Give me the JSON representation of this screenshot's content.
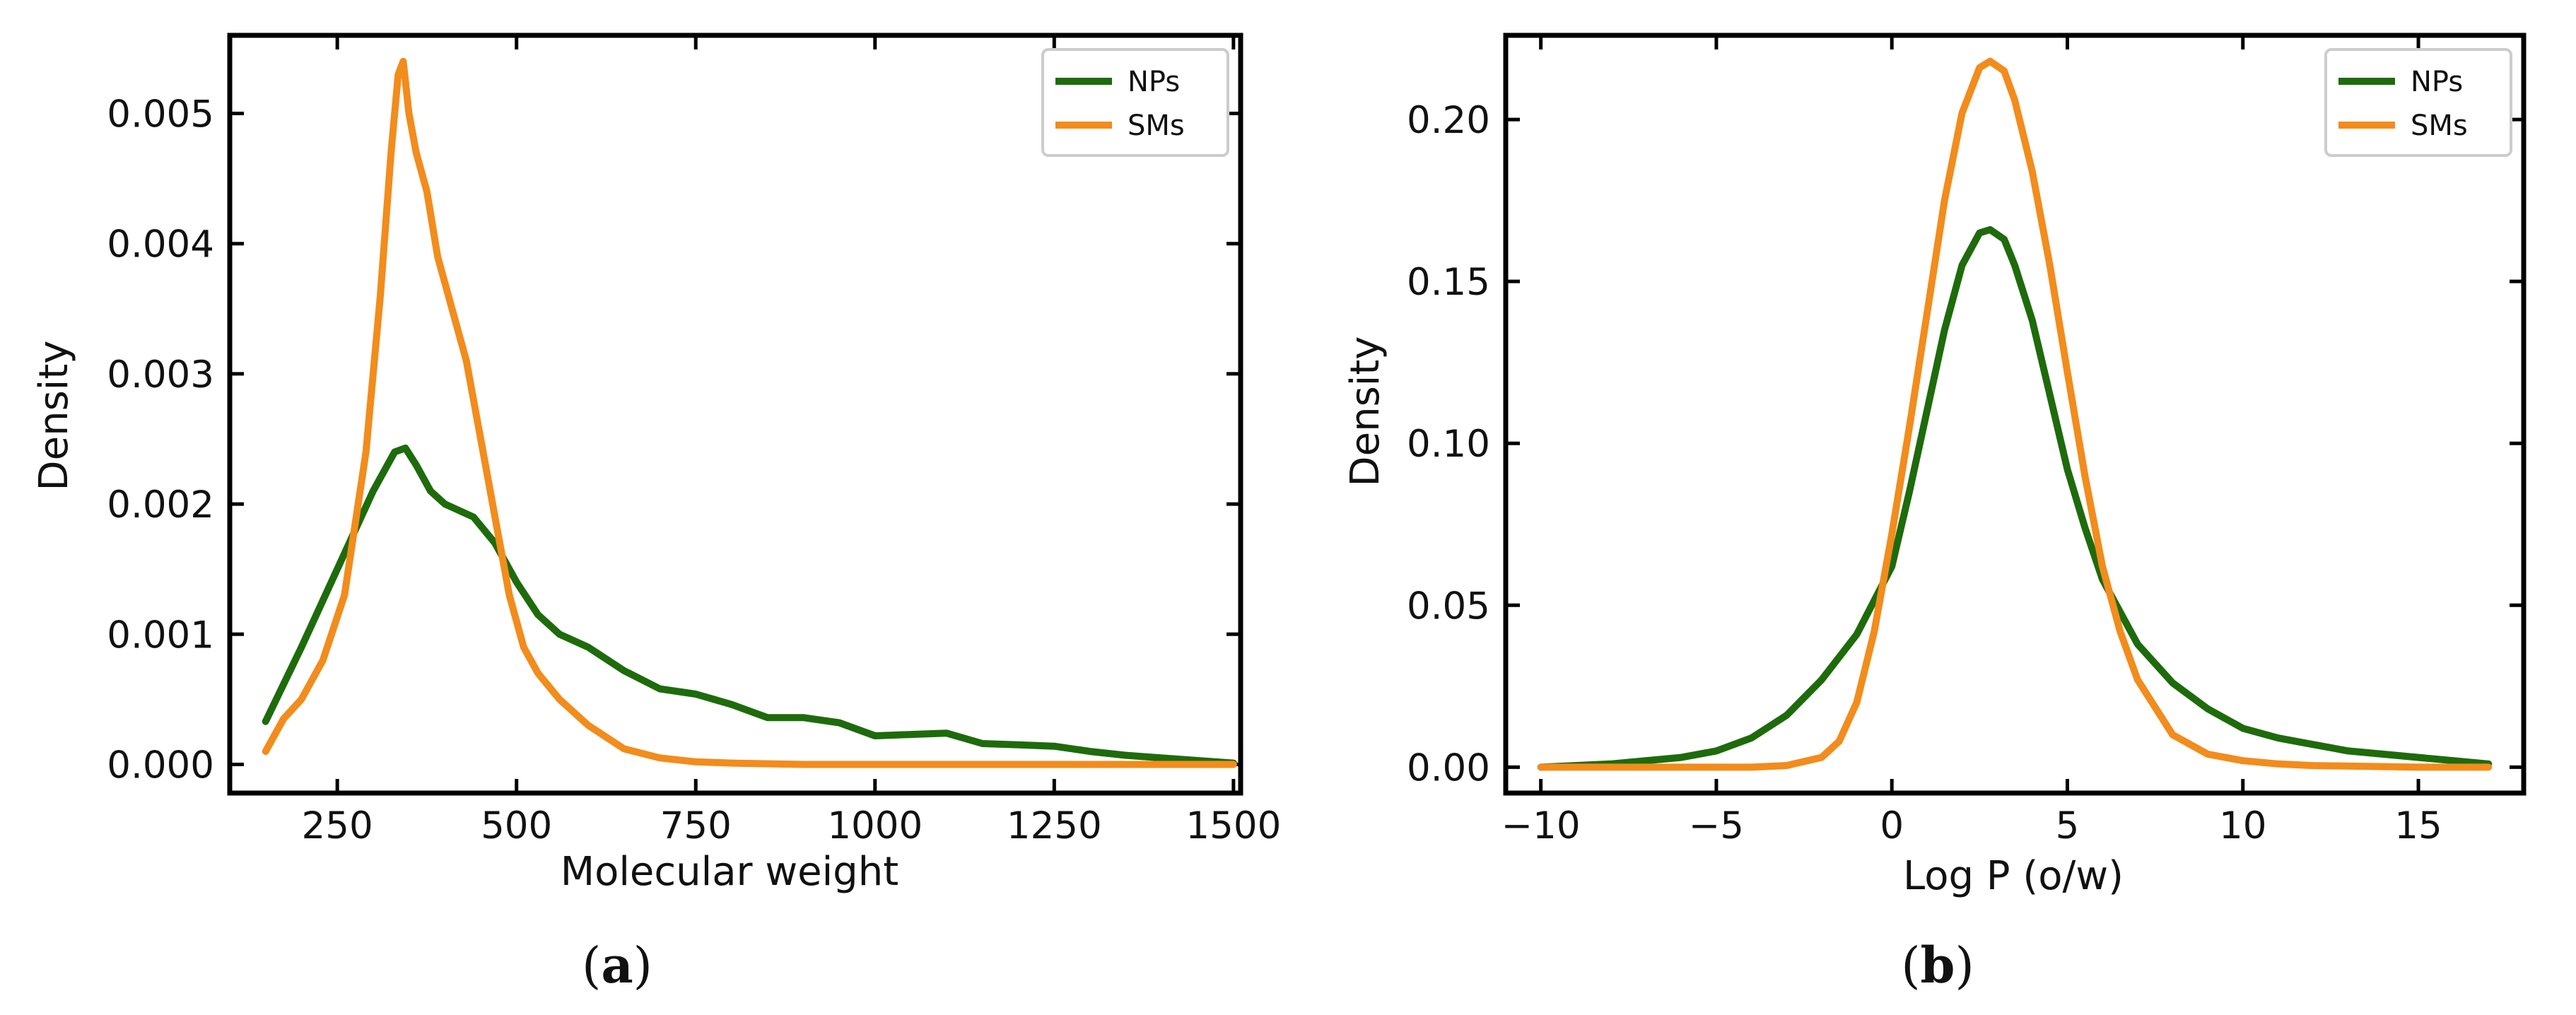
{
  "chart_data": [
    {
      "type": "line",
      "panel_label": "a",
      "xlabel": "Molecular weight",
      "ylabel": "Density",
      "xlim": [
        100,
        1510
      ],
      "ylim": [
        -0.00022,
        0.0056
      ],
      "xticks": [
        250,
        500,
        750,
        1000,
        1250,
        1500
      ],
      "yticks": [
        0.0,
        0.001,
        0.002,
        0.003,
        0.004,
        0.005
      ],
      "xtick_labels": [
        "250",
        "500",
        "750",
        "1000",
        "1250",
        "1500"
      ],
      "ytick_labels": [
        "0.000",
        "0.001",
        "0.002",
        "0.003",
        "0.004",
        "0.005"
      ],
      "legend_position": "top-right",
      "series": [
        {
          "name": "NPs",
          "color": "#1e6b0c",
          "x": [
            150,
            200,
            250,
            300,
            330,
            345,
            360,
            380,
            400,
            440,
            470,
            500,
            530,
            560,
            600,
            650,
            700,
            750,
            800,
            850,
            900,
            950,
            1000,
            1050,
            1100,
            1150,
            1200,
            1250,
            1300,
            1350,
            1400,
            1450,
            1500
          ],
          "y": [
            0.00033,
            0.0009,
            0.0015,
            0.0021,
            0.0024,
            0.00243,
            0.0023,
            0.0021,
            0.002,
            0.0019,
            0.0017,
            0.0014,
            0.00115,
            0.001,
            0.0009,
            0.00072,
            0.00058,
            0.00054,
            0.00046,
            0.00036,
            0.00036,
            0.00032,
            0.00022,
            0.00023,
            0.00024,
            0.00016,
            0.00015,
            0.00014,
            0.0001,
            7e-05,
            5e-05,
            3e-05,
            1e-05
          ]
        },
        {
          "name": "SMs",
          "color": "#f28c1c",
          "x": [
            150,
            175,
            200,
            230,
            260,
            290,
            310,
            325,
            335,
            342,
            350,
            360,
            375,
            390,
            410,
            430,
            450,
            470,
            490,
            510,
            530,
            560,
            600,
            650,
            700,
            750,
            800,
            900,
            1000,
            1200,
            1500
          ],
          "y": [
            0.0001,
            0.00035,
            0.0005,
            0.0008,
            0.0013,
            0.0024,
            0.0036,
            0.0047,
            0.0053,
            0.0054,
            0.005,
            0.0047,
            0.0044,
            0.0039,
            0.0035,
            0.0031,
            0.0025,
            0.0019,
            0.0013,
            0.0009,
            0.0007,
            0.0005,
            0.0003,
            0.00012,
            5e-05,
            2e-05,
            1e-05,
            0.0,
            0.0,
            0.0,
            0.0
          ]
        }
      ]
    },
    {
      "type": "line",
      "panel_label": "b",
      "xlabel": "Log P (o/w)",
      "ylabel": "Density",
      "xlim": [
        -11,
        18
      ],
      "ylim": [
        -0.008,
        0.226
      ],
      "xticks": [
        -10,
        -5,
        0,
        5,
        10,
        15
      ],
      "yticks": [
        0.0,
        0.05,
        0.1,
        0.15,
        0.2
      ],
      "xtick_labels": [
        "−10",
        "−5",
        "0",
        "5",
        "10",
        "15"
      ],
      "ytick_labels": [
        "0.00",
        "0.05",
        "0.10",
        "0.15",
        "0.20"
      ],
      "legend_position": "top-right",
      "series": [
        {
          "name": "NPs",
          "color": "#1e6b0c",
          "x": [
            -10,
            -8,
            -6,
            -5,
            -4,
            -3,
            -2,
            -1,
            0,
            0.5,
            1,
            1.5,
            2,
            2.5,
            2.8,
            3.2,
            3.5,
            4,
            4.5,
            5,
            5.5,
            6,
            7,
            8,
            9,
            10,
            11,
            12,
            13,
            14,
            15,
            16,
            17
          ],
          "y": [
            0.0,
            0.001,
            0.003,
            0.005,
            0.009,
            0.016,
            0.027,
            0.041,
            0.062,
            0.085,
            0.11,
            0.135,
            0.155,
            0.165,
            0.166,
            0.163,
            0.155,
            0.138,
            0.115,
            0.092,
            0.074,
            0.058,
            0.038,
            0.026,
            0.018,
            0.012,
            0.009,
            0.007,
            0.005,
            0.004,
            0.003,
            0.002,
            0.001
          ]
        },
        {
          "name": "SMs",
          "color": "#f28c1c",
          "x": [
            -10,
            -6,
            -4,
            -3,
            -2,
            -1.5,
            -1,
            -0.5,
            0,
            0.5,
            1,
            1.5,
            2,
            2.5,
            2.8,
            3.2,
            3.5,
            4,
            4.5,
            5,
            5.5,
            6,
            6.5,
            7,
            8,
            9,
            10,
            11,
            12,
            15,
            17
          ],
          "y": [
            0.0,
            0.0,
            0.0,
            0.0005,
            0.003,
            0.008,
            0.02,
            0.042,
            0.072,
            0.105,
            0.14,
            0.175,
            0.202,
            0.216,
            0.218,
            0.215,
            0.206,
            0.184,
            0.155,
            0.122,
            0.09,
            0.062,
            0.042,
            0.027,
            0.01,
            0.004,
            0.002,
            0.001,
            0.0005,
            0.0,
            0.0
          ]
        }
      ]
    }
  ]
}
